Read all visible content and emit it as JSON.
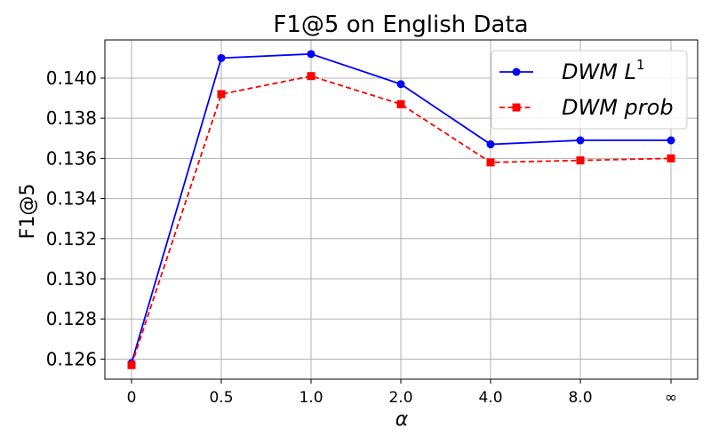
{
  "chart_data": {
    "type": "line",
    "title": "F1@5 on English Data",
    "xlabel": "α",
    "ylabel": "F1@5",
    "categories": [
      "0",
      "0.5",
      "1.0",
      "2.0",
      "4.0",
      "8.0",
      "∞"
    ],
    "ylim": [
      0.125,
      0.1419
    ],
    "yticks": [
      "0.126",
      "0.128",
      "0.130",
      "0.132",
      "0.134",
      "0.136",
      "0.138",
      "0.140"
    ],
    "yticks_values": [
      0.126,
      0.128,
      0.13,
      0.132,
      0.134,
      0.136,
      0.138,
      0.14
    ],
    "grid": true,
    "legend_position": "top-right",
    "series": [
      {
        "name": "DWM L",
        "name_superscript": "1",
        "color": "#0000ff",
        "linestyle": "solid",
        "marker": "circle",
        "values": [
          0.1258,
          0.141,
          0.1412,
          0.1397,
          0.1367,
          0.1369,
          0.1369
        ]
      },
      {
        "name": "DWM prob",
        "color": "#ff0000",
        "linestyle": "dashed",
        "marker": "square",
        "values": [
          0.1257,
          0.1392,
          0.1401,
          0.1387,
          0.1358,
          0.1359,
          0.136
        ]
      }
    ]
  }
}
